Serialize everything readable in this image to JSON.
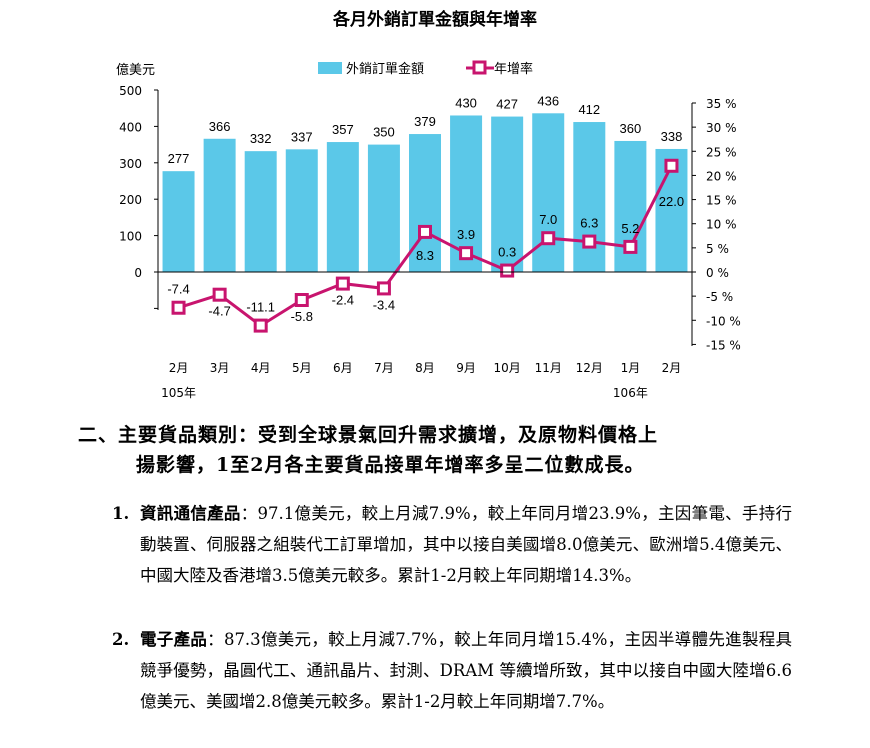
{
  "chart_data": {
    "type": "bar+line",
    "title": "各月外銷訂單金額與年增率",
    "y_left_label": "億美元",
    "y_left_ticks": [
      "500",
      "400",
      "300",
      "200",
      "100",
      "0"
    ],
    "y_left_range": [
      -100,
      500
    ],
    "y_right_ticks": [
      "35 %",
      "30 %",
      "25 %",
      "20 %",
      "15 %",
      "10 %",
      "5 %",
      "0 %",
      "-5 %",
      "-10 %",
      "-15 %"
    ],
    "y_right_range": [
      -15,
      35
    ],
    "categories": [
      "2月",
      "3月",
      "4月",
      "5月",
      "6月",
      "7月",
      "8月",
      "9月",
      "10月",
      "11月",
      "12月",
      "1月",
      "2月"
    ],
    "year_labels": [
      {
        "category_index": 0,
        "text": "105年"
      },
      {
        "category_index": 11,
        "text": "106年"
      }
    ],
    "series": [
      {
        "name": "外銷訂單金額",
        "kind": "bar",
        "color": "#5bc8e8",
        "values": [
          277,
          366,
          332,
          337,
          357,
          350,
          379,
          430,
          427,
          436,
          412,
          360,
          338
        ],
        "labels": [
          "277",
          "366",
          "332",
          "337",
          "357",
          "350",
          "379",
          "430",
          "427",
          "436",
          "412",
          "360",
          "338"
        ]
      },
      {
        "name": "年增率",
        "kind": "line",
        "color": "#c8146e",
        "values": [
          -7.4,
          -4.7,
          -11.1,
          -5.8,
          -2.4,
          -3.4,
          8.3,
          3.9,
          0.3,
          7.0,
          6.3,
          5.2,
          22.0
        ],
        "labels": [
          "-7.4",
          "-4.7",
          "-11.1",
          "-5.8",
          "-2.4",
          "-3.4",
          "8.3",
          "3.9",
          "0.3",
          "7.0",
          "6.3",
          "5.2",
          "22.0"
        ]
      }
    ]
  },
  "section": {
    "heading_line1": "二、主要貨品類別：受到全球景氣回升需求擴增，及原物料價格上",
    "heading_line2": "揚影響，1至2月各主要貨品接單年增率多呈二位數成長。",
    "items": [
      {
        "num": "1.",
        "label": "資訊通信產品",
        "text": "：97.1億美元，較上月減7.9%，較上年同月增23.9%，主因筆電、手持行動裝置、伺服器之組裝代工訂單增加，其中以接自美國增8.0億美元、歐洲增5.4億美元、中國大陸及香港增3.5億美元較多。累計1-2月較上年同期增14.3%。"
      },
      {
        "num": "2.",
        "label": "電子產品",
        "text": "：87.3億美元，較上月減7.7%，較上年同月增15.4%，主因半導體先進製程具競爭優勢，晶圓代工、通訊晶片、封測、DRAM 等續增所致，其中以接自中國大陸增6.6億美元、美國增2.8億美元較多。累計1-2月較上年同期增7.7%。"
      }
    ]
  }
}
